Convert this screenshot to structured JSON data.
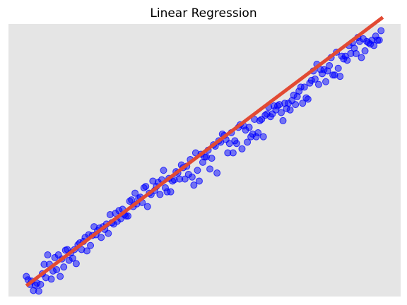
{
  "chart_data": {
    "type": "scatter",
    "title": "Linear Regression",
    "xlabel": "",
    "ylabel": "",
    "grid": false,
    "axis_ticks": false,
    "colors": {
      "background": "#e5e5e5",
      "points": "#0000ff",
      "fit_line": "#e24a33"
    },
    "xlim": [
      -0.5,
      10.5
    ],
    "ylim": [
      -0.8,
      19.5
    ],
    "fit_line": {
      "slope": 2.0,
      "intercept": 0.0,
      "x_range": [
        0,
        10
      ]
    },
    "series": [
      {
        "x": [
          0.0,
          0.05,
          0.1,
          0.15,
          0.2,
          0.25,
          0.3,
          0.35,
          0.4,
          0.45,
          0.5,
          0.55,
          0.6,
          0.65,
          0.7,
          0.75,
          0.8,
          0.85,
          0.9,
          0.95,
          1.0,
          1.05,
          1.1,
          1.15,
          1.2,
          1.25,
          1.3,
          1.35,
          1.4,
          1.45,
          1.5,
          1.55,
          1.6,
          1.65,
          1.7,
          1.75,
          1.8,
          1.85,
          1.9,
          1.95,
          2.0,
          2.05,
          2.1,
          2.15,
          2.2,
          2.25,
          2.3,
          2.35,
          2.4,
          2.45,
          2.5,
          2.55,
          2.6,
          2.65,
          2.7,
          2.75,
          2.8,
          2.85,
          2.9,
          2.95,
          3.0,
          3.05,
          3.1,
          3.15,
          3.2,
          3.25,
          3.3,
          3.35,
          3.4,
          3.45,
          3.5,
          3.55,
          3.6,
          3.65,
          3.7,
          3.75,
          3.8,
          3.85,
          3.9,
          3.95,
          4.0,
          4.05,
          4.1,
          4.15,
          4.2,
          4.25,
          4.3,
          4.35,
          4.4,
          4.45,
          4.5,
          4.55,
          4.6,
          4.65,
          4.7,
          4.75,
          4.8,
          4.85,
          4.9,
          4.95,
          5.0,
          5.05,
          5.1,
          5.15,
          5.2,
          5.25,
          5.3,
          5.35,
          5.4,
          5.45,
          5.5,
          5.55,
          5.6,
          5.65,
          5.7,
          5.75,
          5.8,
          5.85,
          5.9,
          5.95,
          6.0,
          6.05,
          6.1,
          6.15,
          6.2,
          6.25,
          6.3,
          6.35,
          6.4,
          6.45,
          6.5,
          6.55,
          6.6,
          6.65,
          6.7,
          6.75,
          6.8,
          6.85,
          6.9,
          6.95,
          7.0,
          7.05,
          7.1,
          7.15,
          7.2,
          7.25,
          7.3,
          7.35,
          7.4,
          7.45,
          7.5,
          7.55,
          7.6,
          7.65,
          7.7,
          7.75,
          7.8,
          7.85,
          7.9,
          7.95,
          8.0,
          8.05,
          8.1,
          8.15,
          8.2,
          8.25,
          8.3,
          8.35,
          8.4,
          8.45,
          8.5,
          8.55,
          8.6,
          8.65,
          8.7,
          8.75,
          8.8,
          8.85,
          8.9,
          8.95,
          9.0,
          9.05,
          9.1,
          9.15,
          9.2,
          9.25,
          9.3,
          9.35,
          9.4,
          9.45,
          9.5,
          9.55,
          9.6,
          9.65,
          9.7,
          9.75,
          9.8,
          9.85,
          9.9,
          9.95
        ],
        "y": [
          0.7,
          0.45,
          0.1,
          0.35,
          -0.35,
          0.05,
          0.2,
          -0.4,
          0.1,
          0.9,
          1.6,
          0.6,
          2.3,
          1.6,
          0.5,
          1.1,
          2.1,
          1.2,
          2.3,
          0.7,
          2.0,
          1.4,
          2.65,
          2.7,
          1.9,
          2.45,
          2.05,
          2.7,
          1.65,
          3.05,
          3.2,
          2.7,
          3.3,
          3.6,
          2.6,
          3.8,
          3.0,
          3.75,
          4.4,
          3.8,
          4.1,
          4.3,
          3.6,
          4.4,
          4.2,
          4.6,
          3.9,
          5.3,
          4.7,
          4.6,
          5.4,
          4.8,
          5.6,
          5.0,
          5.7,
          5.3,
          5.2,
          5.2,
          6.3,
          6.4,
          5.9,
          6.9,
          6.1,
          6.5,
          6.6,
          6.2,
          7.3,
          7.4,
          5.9,
          6.9,
          6.8,
          7.8,
          7.1,
          7.4,
          7.7,
          6.8,
          7.9,
          8.6,
          7.3,
          7.0,
          8.0,
          7.0,
          7.8,
          7.9,
          8.5,
          8.4,
          7.95,
          9.0,
          8.8,
          7.95,
          8.9,
          8.3,
          9.4,
          8.1,
          7.5,
          9.9,
          8.6,
          7.8,
          9.8,
          9.2,
          9.6,
          9.6,
          10.1,
          8.7,
          9.5,
          10.5,
          10.4,
          8.4,
          10.8,
          10.7,
          11.3,
          11.2,
          10.9,
          9.9,
          10.6,
          11.4,
          9.9,
          10.8,
          10.6,
          11.8,
          12.0,
          10.2,
          11.9,
          11.6,
          10.7,
          11.8,
          11.1,
          11.3,
          12.4,
          11.1,
          11.4,
          12.3,
          12.4,
          11.1,
          12.7,
          12.8,
          13.3,
          12.6,
          12.8,
          13.4,
          13.1,
          13.4,
          13.5,
          12.9,
          12.3,
          13.6,
          13.2,
          13.6,
          13.1,
          13.8,
          14.2,
          13.5,
          14.1,
          14.5,
          14.8,
          13.6,
          14.8,
          14.0,
          13.9,
          15.1,
          15.3,
          16.0,
          15.4,
          16.5,
          15.0,
          16.1,
          15.8,
          16.1,
          15.2,
          16.0,
          16.4,
          17.0,
          15.7,
          15.7,
          17.4,
          16.2,
          15.6,
          17.1,
          16.9,
          17.1,
          16.8,
          17.9,
          17.3,
          18.1,
          17.7,
          17.3,
          18.5,
          18.2,
          17.0,
          18.4,
          17.5,
          18.2,
          18.1,
          18.0,
          18.3,
          17.9,
          18.6,
          18.3,
          18.3,
          19.0
        ]
      }
    ]
  }
}
